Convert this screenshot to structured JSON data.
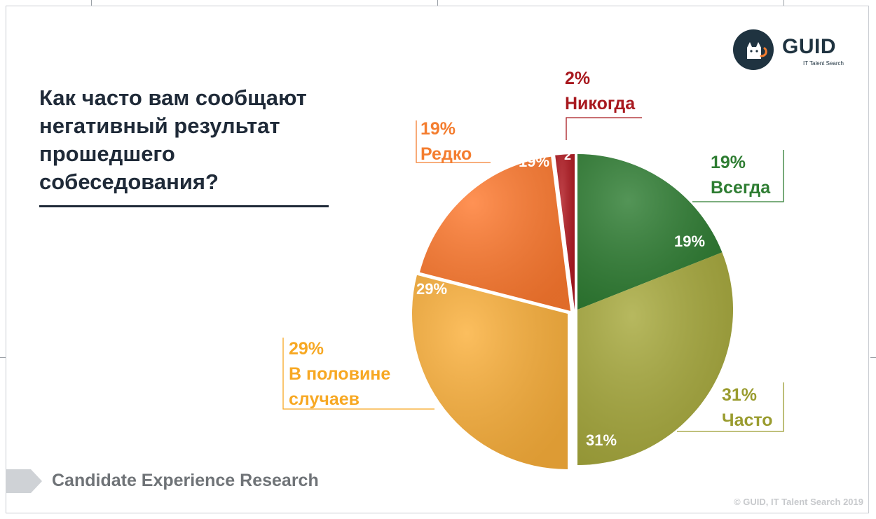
{
  "question": {
    "lines": [
      "Как часто вам сообщают",
      "негативный результат",
      "прошедшего",
      "собеседования?"
    ]
  },
  "logo": {
    "title": "GUID",
    "subtitle": "IT Talent Search"
  },
  "footer": {
    "research_label": "Candidate Experience Research",
    "copyright": "© GUID, IT Talent Search 2019"
  },
  "colors": {
    "Всегда": "#2e7d32",
    "Часто": "#a7a93c",
    "В половине случаев": "#fbb03b",
    "Редко": "#ff7a2f",
    "Никогда": "#b0171f",
    "title": "#1f2a38"
  },
  "chart_data": {
    "type": "pie",
    "title": "Как часто вам сообщают негативный результат прошедшего собеседования?",
    "slices": [
      {
        "label": "Всегда",
        "value": 19,
        "label_text": "19%",
        "inner_text": "19%",
        "outer_pct": "19%",
        "outer_lines": [
          "Всегда"
        ],
        "color": "#2e7d32",
        "label_color": "#2e7d32"
      },
      {
        "label": "Часто",
        "value": 31,
        "label_text": "31%",
        "inner_text": "31%",
        "outer_pct": "31%",
        "outer_lines": [
          "Часто"
        ],
        "color": "#a7a93c",
        "label_color": "#9a9c2f"
      },
      {
        "label": "В половине случаев",
        "value": 29,
        "label_text": "29%",
        "inner_text": "29%",
        "outer_pct": "29%",
        "outer_lines": [
          "В половине",
          "случаев"
        ],
        "color": "#fbb03b",
        "label_color": "#f7a823"
      },
      {
        "label": "Редко",
        "value": 19,
        "label_text": "19%",
        "inner_text": "19%",
        "outer_pct": "19%",
        "outer_lines": [
          "Редко"
        ],
        "color": "#ff7a2f",
        "label_color": "#f47d2f"
      },
      {
        "label": "Никогда",
        "value": 2,
        "label_text": "2%",
        "inner_text": "2",
        "outer_pct": "2%",
        "outer_lines": [
          "Никогда"
        ],
        "color": "#b0171f",
        "label_color": "#a8191f"
      }
    ]
  }
}
